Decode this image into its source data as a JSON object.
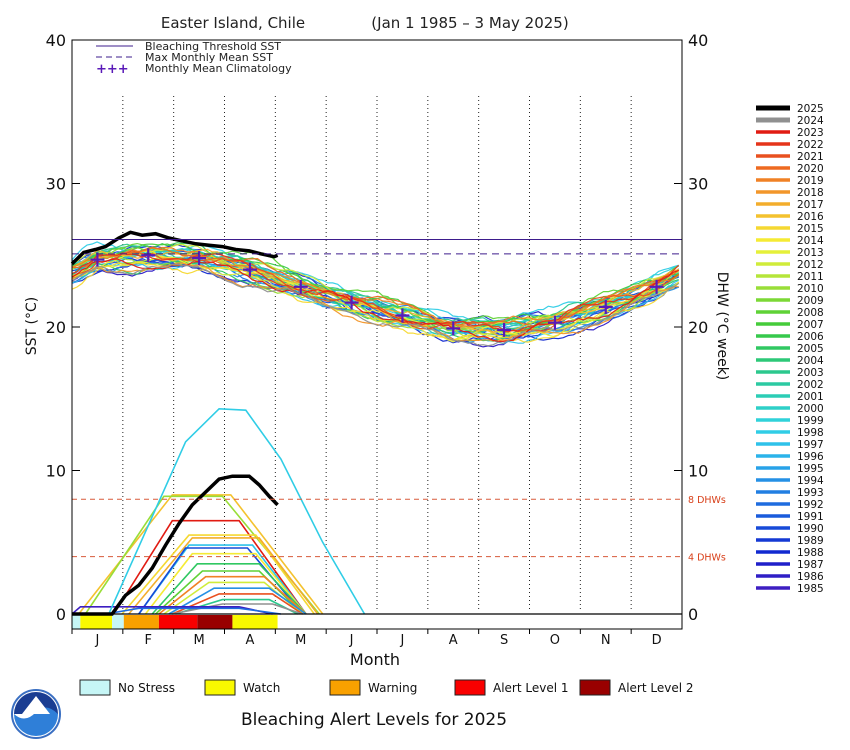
{
  "chart_data": {
    "type": "line",
    "title": "Easter Island, Chile",
    "subtitle": "(Jan 1 1985 – 3 May 2025)",
    "xlabel": "Month",
    "ylabel_left": "SST (°C)",
    "ylabel_right": "DHW (°C week)",
    "ylim": [
      0,
      40
    ],
    "yticks": [
      0,
      10,
      20,
      30,
      40
    ],
    "months": [
      "J",
      "F",
      "M",
      "A",
      "M",
      "J",
      "J",
      "A",
      "S",
      "O",
      "N",
      "D"
    ],
    "bleaching_threshold_sst": 26.1,
    "max_monthly_mean_sst": 25.1,
    "climatology": [
      24.7,
      25.0,
      24.8,
      24.0,
      22.8,
      21.7,
      20.8,
      19.9,
      19.8,
      20.3,
      21.4,
      22.8
    ],
    "dhw_lines": [
      {
        "value": 8,
        "label": "8 DHWs"
      },
      {
        "value": 4,
        "label": "4 DHWs"
      }
    ],
    "legend_lines": [
      {
        "label": "Bleaching Threshold SST",
        "style": "solid",
        "color": "#3d1c8c"
      },
      {
        "label": "Max Monthly Mean SST",
        "style": "dashed",
        "color": "#3d1c8c"
      },
      {
        "label": "Monthly Mean Climatology",
        "style": "plus",
        "color": "#5a1ab8"
      }
    ],
    "years": [
      {
        "year": "2025",
        "color": "#000000"
      },
      {
        "year": "2024",
        "color": "#909090"
      },
      {
        "year": "2023",
        "color": "#e11b12"
      },
      {
        "year": "2022",
        "color": "#e5341a"
      },
      {
        "year": "2021",
        "color": "#e9501f"
      },
      {
        "year": "2020",
        "color": "#ee6a20"
      },
      {
        "year": "2019",
        "color": "#f08125"
      },
      {
        "year": "2018",
        "color": "#f2962a"
      },
      {
        "year": "2017",
        "color": "#f3ad2c"
      },
      {
        "year": "2016",
        "color": "#f4c22e"
      },
      {
        "year": "2015",
        "color": "#f5d832"
      },
      {
        "year": "2014",
        "color": "#f5eb35"
      },
      {
        "year": "2013",
        "color": "#e5f03a"
      },
      {
        "year": "2012",
        "color": "#d0ec3a"
      },
      {
        "year": "2011",
        "color": "#b5e53a"
      },
      {
        "year": "2010",
        "color": "#99de38"
      },
      {
        "year": "2009",
        "color": "#7cd836"
      },
      {
        "year": "2008",
        "color": "#5fd236"
      },
      {
        "year": "2007",
        "color": "#45cc3a"
      },
      {
        "year": "2006",
        "color": "#36c94c"
      },
      {
        "year": "2005",
        "color": "#30c862"
      },
      {
        "year": "2004",
        "color": "#2dc878"
      },
      {
        "year": "2003",
        "color": "#2cc88d"
      },
      {
        "year": "2002",
        "color": "#2ccaa2"
      },
      {
        "year": "2001",
        "color": "#2ccdb5"
      },
      {
        "year": "2000",
        "color": "#2ed0c8"
      },
      {
        "year": "1999",
        "color": "#30d2da"
      },
      {
        "year": "1998",
        "color": "#30cde6"
      },
      {
        "year": "1997",
        "color": "#2ec2ea"
      },
      {
        "year": "1996",
        "color": "#2bb3ea"
      },
      {
        "year": "1995",
        "color": "#28a2e8"
      },
      {
        "year": "1994",
        "color": "#2590e5"
      },
      {
        "year": "1993",
        "color": "#217ee2"
      },
      {
        "year": "1992",
        "color": "#1e6cdf"
      },
      {
        "year": "1991",
        "color": "#1a5bdc"
      },
      {
        "year": "1990",
        "color": "#174ad8"
      },
      {
        "year": "1989",
        "color": "#1439d4"
      },
      {
        "year": "1988",
        "color": "#1129d0"
      },
      {
        "year": "1987",
        "color": "#1f1fca"
      },
      {
        "year": "1986",
        "color": "#2f1ec6"
      },
      {
        "year": "1985",
        "color": "#3d1ec2"
      }
    ],
    "sst_2025": [
      [
        0,
        24.4
      ],
      [
        7,
        25.2
      ],
      [
        14,
        25.4
      ],
      [
        20,
        25.6
      ],
      [
        28,
        26.2
      ],
      [
        35,
        26.6
      ],
      [
        42,
        26.4
      ],
      [
        50,
        26.5
      ],
      [
        58,
        26.2
      ],
      [
        66,
        26.0
      ],
      [
        74,
        25.8
      ],
      [
        82,
        25.7
      ],
      [
        90,
        25.6
      ],
      [
        98,
        25.4
      ],
      [
        106,
        25.3
      ],
      [
        113,
        25.1
      ],
      [
        121,
        24.9
      ],
      [
        123,
        25.0
      ]
    ],
    "dhw_2025": [
      [
        0,
        0
      ],
      [
        24,
        0
      ],
      [
        32,
        1.3
      ],
      [
        40,
        2.0
      ],
      [
        48,
        3.2
      ],
      [
        56,
        4.8
      ],
      [
        64,
        6.3
      ],
      [
        72,
        7.6
      ],
      [
        80,
        8.5
      ],
      [
        88,
        9.4
      ],
      [
        96,
        9.6
      ],
      [
        106,
        9.6
      ],
      [
        112,
        9.0
      ],
      [
        118,
        8.2
      ],
      [
        123,
        7.6
      ]
    ],
    "dhw_1998": [
      [
        0,
        0
      ],
      [
        22,
        0
      ],
      [
        45,
        6.0
      ],
      [
        68,
        12.0
      ],
      [
        88,
        14.3
      ],
      [
        104,
        14.2
      ],
      [
        125,
        10.8
      ],
      [
        150,
        5.0
      ],
      [
        175,
        0
      ]
    ],
    "dhw_others": [
      {
        "year": "2016",
        "peak": 8.3,
        "start": 4,
        "rise_end": 60,
        "fall_start": 95,
        "end": 150
      },
      {
        "year": "2010",
        "peak": 8.2,
        "start": 8,
        "rise_end": 55,
        "fall_start": 90,
        "end": 148
      },
      {
        "year": "2023",
        "peak": 6.5,
        "start": 25,
        "rise_end": 60,
        "fall_start": 100,
        "end": 140
      },
      {
        "year": "2015",
        "peak": 5.5,
        "start": 30,
        "rise_end": 70,
        "fall_start": 110,
        "end": 145
      },
      {
        "year": "2017",
        "peak": 5.3,
        "start": 34,
        "rise_end": 72,
        "fall_start": 112,
        "end": 147
      },
      {
        "year": "1997",
        "peak": 4.8,
        "start": 40,
        "rise_end": 70,
        "fall_start": 108,
        "end": 140
      },
      {
        "year": "1990",
        "peak": 4.6,
        "start": 40,
        "rise_end": 68,
        "fall_start": 105,
        "end": 138
      },
      {
        "year": "2014",
        "peak": 4.2,
        "start": 44,
        "rise_end": 72,
        "fall_start": 110,
        "end": 140
      },
      {
        "year": "2005",
        "peak": 3.5,
        "start": 48,
        "rise_end": 75,
        "fall_start": 112,
        "end": 140
      },
      {
        "year": "2008",
        "peak": 3.0,
        "start": 50,
        "rise_end": 78,
        "fall_start": 112,
        "end": 138
      },
      {
        "year": "2019",
        "peak": 2.6,
        "start": 52,
        "rise_end": 80,
        "fall_start": 115,
        "end": 140
      },
      {
        "year": "2012",
        "peak": 2.2,
        "start": 55,
        "rise_end": 82,
        "fall_start": 115,
        "end": 138
      },
      {
        "year": "1994",
        "peak": 1.8,
        "start": 58,
        "rise_end": 85,
        "fall_start": 118,
        "end": 140
      },
      {
        "year": "2021",
        "peak": 1.4,
        "start": 60,
        "rise_end": 88,
        "fall_start": 120,
        "end": 138
      },
      {
        "year": "2003",
        "peak": 1.0,
        "start": 62,
        "rise_end": 90,
        "fall_start": 118,
        "end": 135
      },
      {
        "year": "2024",
        "peak": 0.7,
        "start": 60,
        "rise_end": 90,
        "fall_start": 120,
        "end": 138
      },
      {
        "year": "1985",
        "peak": 0.5,
        "start": 0,
        "rise_end": 5,
        "fall_start": 100,
        "end": 120
      },
      {
        "year": "1992",
        "peak": 0.4,
        "start": 20,
        "rise_end": 40,
        "fall_start": 100,
        "end": 125
      }
    ],
    "alert_levels": [
      {
        "label": "No Stress",
        "color": "#c6f6f6"
      },
      {
        "label": "Watch",
        "color": "#f9f900"
      },
      {
        "label": "Warning",
        "color": "#f9a100"
      },
      {
        "label": "Alert Level 1",
        "color": "#f90000"
      },
      {
        "label": "Alert Level 2",
        "color": "#990000"
      }
    ],
    "alert_bar_2025": [
      [
        0,
        5,
        "No Stress"
      ],
      [
        5,
        24,
        "Watch"
      ],
      [
        24,
        31,
        "No Stress"
      ],
      [
        31,
        52,
        "Warning"
      ],
      [
        52,
        75,
        "Alert Level 1"
      ],
      [
        75,
        96,
        "Alert Level 2"
      ],
      [
        96,
        123,
        "Watch"
      ]
    ],
    "alert_title": "Bleaching Alert Levels for 2025"
  },
  "logo": {
    "text": "NOAA",
    "name": "noaa-logo"
  }
}
